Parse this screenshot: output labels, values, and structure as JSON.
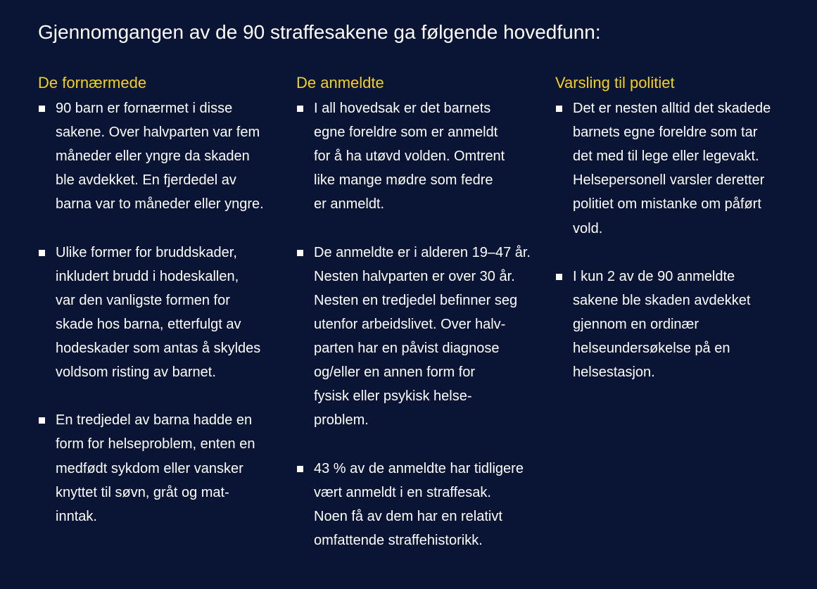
{
  "title": "Gjennomgangen av de 90 straffesakene ga følgende hovedfunn:",
  "columns": [
    {
      "heading": "De fornærmede",
      "items": [
        {
          "lines": [
            "90 barn er fornærmet i disse",
            "sakene. Over halvparten var fem",
            "måneder eller yngre da skaden",
            "ble avdekket. En fjerdedel av",
            "barna var to måneder eller yngre."
          ]
        },
        {
          "lines": [
            "Ulike former for bruddskader,",
            "inkludert brudd i hodeskallen,",
            "var den vanligste formen for",
            "skade hos barna, etterfulgt av",
            "hodeskader som antas å skyldes",
            "voldsom risting av barnet."
          ]
        },
        {
          "lines": [
            "En tredjedel av barna hadde en",
            "form for helseproblem, enten en",
            "medfødt sykdom eller vansker",
            "knyttet til søvn, gråt og mat-",
            "inntak."
          ]
        }
      ]
    },
    {
      "heading": "De anmeldte",
      "items": [
        {
          "lines": [
            "I all hovedsak er det barnets",
            "egne foreldre som er anmeldt",
            "for å ha utøvd volden. Omtrent",
            "like mange mødre som fedre",
            "er anmeldt."
          ]
        },
        {
          "lines": [
            "De anmeldte er i alderen 19–47 år.",
            "Nesten halvparten er over 30 år.",
            "Nesten en tredjedel befinner seg",
            "utenfor arbeidslivet. Over halv-",
            "parten har en påvist diagnose",
            "og/eller en annen form for",
            "fysisk eller psykisk helse-",
            "problem."
          ]
        },
        {
          "lines": [
            "43 % av de anmeldte har tidligere",
            "vært anmeldt i en straffesak.",
            "Noen få av dem har en relativt",
            "omfattende straffehistorikk."
          ]
        }
      ]
    },
    {
      "heading": "Varsling til politiet",
      "items": [
        {
          "lines": [
            "Det er nesten alltid det skadede",
            "barnets egne foreldre som tar",
            "det med til lege eller legevakt.",
            "Helsepersonell varsler deretter",
            "politiet om mistanke om påført",
            "vold."
          ]
        },
        {
          "lines": [
            "I kun 2 av de 90 anmeldte",
            "sakene ble skaden avdekket",
            "gjennom en ordinær",
            "helseundersøkelse på en",
            "helsestasjon."
          ]
        }
      ]
    }
  ]
}
